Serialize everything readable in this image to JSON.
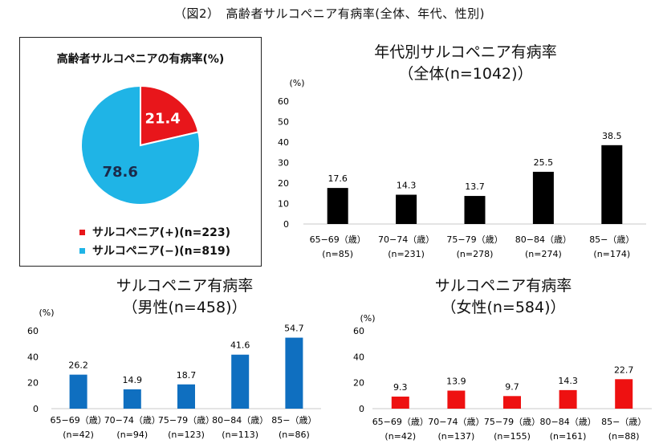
{
  "figure_title": "（図2）　高齢者サルコペニア有病率(全体、年代、性別)",
  "chart_data": [
    {
      "id": "pie",
      "type": "pie",
      "title": "高齢者サルコペニアの有病率(%)",
      "slices": [
        {
          "label": "サルコペニア(+)(n=223)",
          "value": 21.4,
          "value_label": "21.4",
          "color": "#e8161b"
        },
        {
          "label": "サルコペニア(−)(n=819)",
          "value": 78.6,
          "value_label": "78.6",
          "color": "#1fb4e6"
        }
      ]
    },
    {
      "id": "overall",
      "type": "bar",
      "title_line1": "年代別サルコペニア有病率",
      "title_line2": "（全体(n=1042)）",
      "ylabel": "(%)",
      "ylim": [
        0,
        60
      ],
      "yticks": [
        "0",
        "10",
        "20",
        "30",
        "40",
        "50",
        "60"
      ],
      "color": "#000000",
      "categories": [
        "65−69（歳）",
        "70−74（歳）",
        "75−79（歳）",
        "80−84（歳）",
        "85−（歳）"
      ],
      "n_labels": [
        "(n=85)",
        "(n=231)",
        "(n=278)",
        "(n=274)",
        "(n=174)"
      ],
      "values": [
        17.6,
        14.3,
        13.7,
        25.5,
        38.5
      ],
      "value_labels": [
        "17.6",
        "14.3",
        "13.7",
        "25.5",
        "38.5"
      ]
    },
    {
      "id": "male",
      "type": "bar",
      "title_line1": "サルコペニア有病率",
      "title_line2": "（男性(n=458)）",
      "ylabel": "(%)",
      "ylim": [
        0,
        60
      ],
      "yticks": [
        "0",
        "20",
        "40",
        "60"
      ],
      "color": "#0f6fc0",
      "categories": [
        "65−69（歳）",
        "70−74（歳）",
        "75−79（歳）",
        "80−84（歳）",
        "85−（歳）"
      ],
      "n_labels": [
        "(n=42)",
        "(n=94)",
        "(n=123)",
        "(n=113)",
        "(n=86)"
      ],
      "values": [
        26.2,
        14.9,
        18.7,
        41.6,
        54.7
      ],
      "value_labels": [
        "26.2",
        "14.9",
        "18.7",
        "41.6",
        "54.7"
      ]
    },
    {
      "id": "female",
      "type": "bar",
      "title_line1": "サルコペニア有病率",
      "title_line2": "（女性(n=584)）",
      "ylabel": "(%)",
      "ylim": [
        0,
        60
      ],
      "yticks": [
        "0",
        "20",
        "40",
        "60"
      ],
      "color": "#ee1111",
      "categories": [
        "65−69（歳）",
        "70−74（歳）",
        "75−79（歳）",
        "80−84（歳）",
        "85−（歳）"
      ],
      "n_labels": [
        "(n=42)",
        "(n=137)",
        "(n=155)",
        "(n=161)",
        "(n=88)"
      ],
      "values": [
        9.3,
        13.9,
        9.7,
        14.3,
        22.7
      ],
      "value_labels": [
        "9.3",
        "13.9",
        "9.7",
        "14.3",
        "22.7"
      ]
    }
  ]
}
